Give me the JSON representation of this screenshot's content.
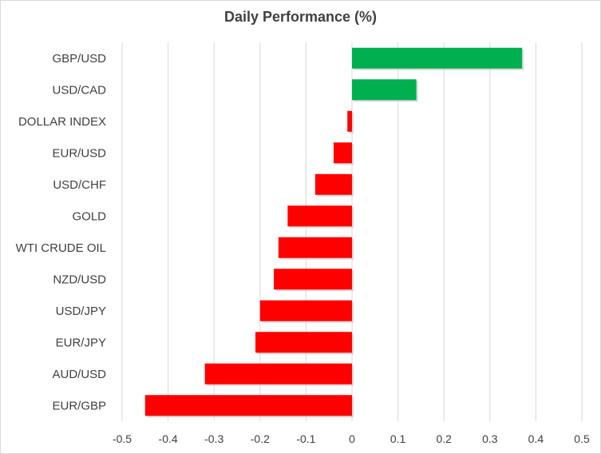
{
  "chart_data": {
    "type": "bar",
    "orientation": "horizontal",
    "title": "Daily Performance (%)",
    "xlabel": "",
    "ylabel": "",
    "xlim": [
      -0.5,
      0.5
    ],
    "xticks": [
      -0.5,
      -0.4,
      -0.3,
      -0.2,
      -0.1,
      0,
      0.1,
      0.2,
      0.3,
      0.4,
      0.5
    ],
    "grid": "vertical",
    "legend": "none",
    "colors": {
      "positive": "#00b050",
      "negative": "#ff0000",
      "grid": "#d9d9d9",
      "text": "#404040"
    },
    "categories": [
      "GBP/USD",
      "USD/CAD",
      "DOLLAR INDEX",
      "EUR/USD",
      "USD/CHF",
      "GOLD",
      "WTI CRUDE OIL",
      "NZD/USD",
      "USD/JPY",
      "EUR/JPY",
      "AUD/USD",
      "EUR/GBP"
    ],
    "values": [
      0.37,
      0.14,
      -0.01,
      -0.04,
      -0.08,
      -0.14,
      -0.16,
      -0.17,
      -0.2,
      -0.21,
      -0.32,
      -0.45
    ]
  }
}
